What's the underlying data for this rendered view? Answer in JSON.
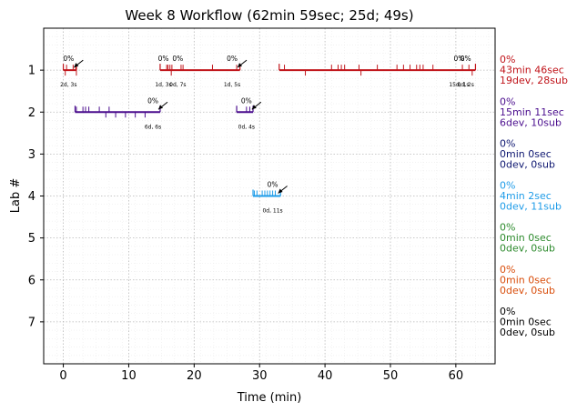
{
  "chart_data": {
    "type": "timeline",
    "title": "Week 8 Workflow (62min 59sec; 25d; 49s)",
    "xlabel": "Time (min)",
    "ylabel": "Lab #",
    "xlim": [
      -3,
      66
    ],
    "ylim": [
      8,
      0
    ],
    "xticks": [
      0,
      10,
      20,
      30,
      40,
      50,
      60
    ],
    "yticks": [
      1,
      2,
      3,
      4,
      5,
      6,
      7
    ],
    "grid": true,
    "labs": [
      {
        "lab": 1,
        "color": "#c0141a",
        "segments": [
          [
            0,
            2.0
          ],
          [
            14.8,
            27.0
          ],
          [
            33.0,
            63.0
          ]
        ],
        "dev_ticks": [
          0.3,
          2.0,
          16.5,
          37.0,
          45.5,
          62.5
        ],
        "sub_ticks": [
          0.5,
          1.5,
          1.9,
          15.8,
          16.0,
          16.3,
          16.6,
          18.0,
          18.3,
          22.8,
          26.5,
          33.8,
          41.0,
          42.0,
          42.5,
          43.0,
          45.2,
          48.0,
          51.0,
          52.0,
          53.0,
          54.0,
          54.5,
          55.0,
          56.5,
          61.0,
          62.0
        ],
        "annotations": [
          {
            "x": 0.8,
            "pct": "0%",
            "dur": "2d, 3s",
            "arrow": true
          },
          {
            "x": 15.3,
            "pct": "0%",
            "dur": "1d, 3s",
            "arrow": false
          },
          {
            "x": 17.5,
            "pct": "0%",
            "dur": "0d, 7s",
            "arrow": false
          },
          {
            "x": 25.8,
            "pct": "0%",
            "dur": "1d, 5s",
            "arrow": true
          },
          {
            "x": 60.5,
            "pct": "0%",
            "dur": "15d, 1s",
            "arrow": false
          },
          {
            "x": 61.5,
            "pct": "0%",
            "dur": "0d, 2s",
            "arrow": false
          }
        ],
        "summary": [
          "0%",
          "43min 46sec",
          "19dev, 28sub"
        ]
      },
      {
        "lab": 2,
        "color": "#4b0e8e",
        "segments": [
          [
            1.8,
            14.8
          ],
          [
            26.5,
            29.0
          ]
        ],
        "dev_ticks": [
          6.5,
          8.0,
          9.5,
          11.0,
          12.5
        ],
        "sub_ticks": [
          2.0,
          3.0,
          3.4,
          3.9,
          5.5,
          7.0,
          28.0,
          28.5
        ],
        "annotations": [
          {
            "x": 13.7,
            "pct": "0%",
            "dur": "6d, 6s",
            "arrow": true
          },
          {
            "x": 28.0,
            "pct": "0%",
            "dur": "0d, 4s",
            "arrow": true
          }
        ],
        "summary": [
          "0%",
          "15min 11sec",
          "6dev, 10sub"
        ]
      },
      {
        "lab": 3,
        "color": "#0d1670",
        "segments": [],
        "dev_ticks": [],
        "sub_ticks": [],
        "annotations": [],
        "summary": [
          "0%",
          "0min 0sec",
          "0dev, 0sub"
        ]
      },
      {
        "lab": 4,
        "color": "#1f9ce8",
        "segments": [
          [
            29.0,
            33.2
          ]
        ],
        "dev_ticks": [],
        "sub_ticks": [
          29.2,
          29.6,
          30.4,
          30.8,
          31.2,
          31.6,
          32.0,
          32.4
        ],
        "annotations": [
          {
            "x": 32.0,
            "pct": "0%",
            "dur": "0d, 11s",
            "arrow": true
          }
        ],
        "summary": [
          "0%",
          "4min 2sec",
          "0dev, 11sub"
        ]
      },
      {
        "lab": 5,
        "color": "#2e8b2e",
        "segments": [],
        "dev_ticks": [],
        "sub_ticks": [],
        "annotations": [],
        "summary": [
          "0%",
          "0min 0sec",
          "0dev, 0sub"
        ]
      },
      {
        "lab": 6,
        "color": "#d94e0c",
        "segments": [],
        "dev_ticks": [],
        "sub_ticks": [],
        "annotations": [],
        "summary": [
          "0%",
          "0min 0sec",
          "0dev, 0sub"
        ]
      },
      {
        "lab": 7,
        "color": "#000000",
        "segments": [],
        "dev_ticks": [],
        "sub_ticks": [],
        "annotations": [],
        "summary": [
          "0%",
          "0min 0sec",
          "0dev, 0sub"
        ]
      }
    ]
  }
}
